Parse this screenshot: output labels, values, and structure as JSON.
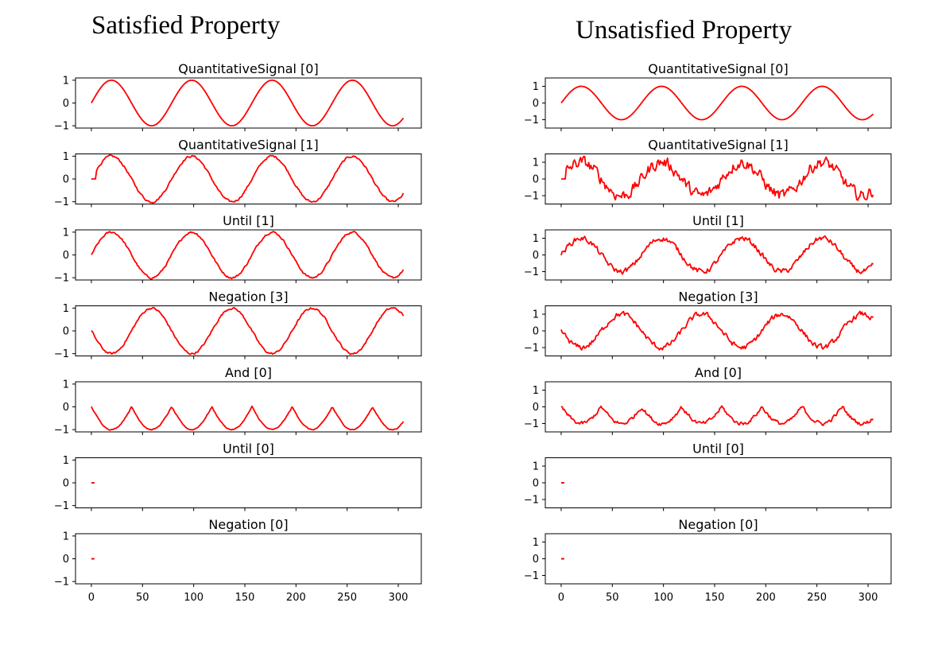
{
  "titles": {
    "left": "Satisfied Property",
    "right": "Unsatisfied Property"
  },
  "colors": {
    "line": "#ff0000",
    "axis": "#000000"
  },
  "chart_data": [
    {
      "type": "line",
      "panel": "Satisfied Property",
      "title": "QuantitativeSignal [0]",
      "ylim": [
        -1.1,
        1.1
      ],
      "yticks": [
        -1,
        0,
        1
      ],
      "xticks": [
        0,
        50,
        100,
        150,
        200,
        250,
        300
      ],
      "xlim": [
        -15.5,
        322.5
      ],
      "gen": {
        "kind": "sin",
        "noise": 0
      }
    },
    {
      "type": "line",
      "panel": "Satisfied Property",
      "title": "QuantitativeSignal [1]",
      "ylim": [
        -1.1,
        1.1
      ],
      "yticks": [
        -1,
        0,
        1
      ],
      "xticks": [
        0,
        50,
        100,
        150,
        200,
        250,
        300
      ],
      "xlim": [
        -15.5,
        322.5
      ],
      "gen": {
        "kind": "sin",
        "noise": 0.04,
        "flatStart": true
      }
    },
    {
      "type": "line",
      "panel": "Satisfied Property",
      "title": "Until [1]",
      "ylim": [
        -1.1,
        1.1
      ],
      "yticks": [
        -1,
        0,
        1
      ],
      "xticks": [
        0,
        50,
        100,
        150,
        200,
        250,
        300
      ],
      "xlim": [
        -15.5,
        322.5
      ],
      "gen": {
        "kind": "sin",
        "noise": 0.04
      }
    },
    {
      "type": "line",
      "panel": "Satisfied Property",
      "title": "Negation [3]",
      "ylim": [
        -1.1,
        1.1
      ],
      "yticks": [
        -1,
        0,
        1
      ],
      "xticks": [
        0,
        50,
        100,
        150,
        200,
        250,
        300
      ],
      "xlim": [
        -15.5,
        322.5
      ],
      "gen": {
        "kind": "negsin",
        "noise": 0.04
      }
    },
    {
      "type": "line",
      "panel": "Satisfied Property",
      "title": "And [0]",
      "ylim": [
        -1.1,
        1.1
      ],
      "yticks": [
        -1,
        0,
        1
      ],
      "xticks": [
        0,
        50,
        100,
        150,
        200,
        250,
        300
      ],
      "xlim": [
        -15.5,
        322.5
      ],
      "gen": {
        "kind": "and",
        "noise": 0.02
      }
    },
    {
      "type": "line",
      "panel": "Satisfied Property",
      "title": "Until [0]",
      "ylim": [
        -1.1,
        1.1
      ],
      "yticks": [
        -1,
        0,
        1
      ],
      "xticks": [
        0,
        50,
        100,
        150,
        200,
        250,
        300
      ],
      "xlim": [
        -15.5,
        322.5
      ],
      "gen": {
        "kind": "dot"
      }
    },
    {
      "type": "line",
      "panel": "Satisfied Property",
      "title": "Negation [0]",
      "ylim": [
        -1.1,
        1.1
      ],
      "yticks": [
        -1,
        0,
        1
      ],
      "xticks": [
        0,
        50,
        100,
        150,
        200,
        250,
        300
      ],
      "xticklabels": [
        "0",
        "50",
        "100",
        "150",
        "200",
        "250",
        "300"
      ],
      "xlim": [
        -15.5,
        322.5
      ],
      "gen": {
        "kind": "dot"
      }
    },
    {
      "type": "line",
      "panel": "Unsatisfied Property",
      "title": "QuantitativeSignal [0]",
      "ylim": [
        -1.5,
        1.5
      ],
      "yticks": [
        -1,
        0,
        1
      ],
      "xticks": [
        0,
        50,
        100,
        150,
        200,
        250,
        300
      ],
      "xlim": [
        -15.5,
        322.5
      ],
      "gen": {
        "kind": "sin",
        "noise": 0
      }
    },
    {
      "type": "line",
      "panel": "Unsatisfied Property",
      "title": "QuantitativeSignal [1]",
      "ylim": [
        -1.5,
        1.5
      ],
      "yticks": [
        -1,
        0,
        1
      ],
      "xticks": [
        0,
        50,
        100,
        150,
        200,
        250,
        300
      ],
      "xlim": [
        -15.5,
        322.5
      ],
      "gen": {
        "kind": "sin",
        "noise": 0.3,
        "flatStart": true
      }
    },
    {
      "type": "line",
      "panel": "Unsatisfied Property",
      "title": "Until [1]",
      "ylim": [
        -1.5,
        1.5
      ],
      "yticks": [
        -1,
        0,
        1
      ],
      "xticks": [
        0,
        50,
        100,
        150,
        200,
        250,
        300
      ],
      "xlim": [
        -15.5,
        322.5
      ],
      "gen": {
        "kind": "sin",
        "noise": 0.14,
        "amp": 1.0
      }
    },
    {
      "type": "line",
      "panel": "Unsatisfied Property",
      "title": "Negation [3]",
      "ylim": [
        -1.5,
        1.5
      ],
      "yticks": [
        -1,
        0,
        1
      ],
      "xticks": [
        0,
        50,
        100,
        150,
        200,
        250,
        300
      ],
      "xlim": [
        -15.5,
        322.5
      ],
      "gen": {
        "kind": "negsin",
        "noise": 0.14
      }
    },
    {
      "type": "line",
      "panel": "Unsatisfied Property",
      "title": "And [0]",
      "ylim": [
        -1.5,
        1.5
      ],
      "yticks": [
        -1,
        0,
        1
      ],
      "xticks": [
        0,
        50,
        100,
        150,
        200,
        250,
        300
      ],
      "xlim": [
        -15.5,
        322.5
      ],
      "gen": {
        "kind": "and",
        "noise": 0.1
      }
    },
    {
      "type": "line",
      "panel": "Unsatisfied Property",
      "title": "Until [0]",
      "ylim": [
        -1.5,
        1.5
      ],
      "yticks": [
        -1,
        0,
        1
      ],
      "xticks": [
        0,
        50,
        100,
        150,
        200,
        250,
        300
      ],
      "xlim": [
        -15.5,
        322.5
      ],
      "gen": {
        "kind": "dot"
      }
    },
    {
      "type": "line",
      "panel": "Unsatisfied Property",
      "title": "Negation [0]",
      "ylim": [
        -1.5,
        1.5
      ],
      "yticks": [
        -1,
        0,
        1
      ],
      "xticks": [
        0,
        50,
        100,
        150,
        200,
        250,
        300
      ],
      "xticklabels": [
        "0",
        "50",
        "100",
        "150",
        "200",
        "250",
        "300"
      ],
      "xlim": [
        -15.5,
        322.5
      ],
      "gen": {
        "kind": "dot"
      }
    }
  ]
}
